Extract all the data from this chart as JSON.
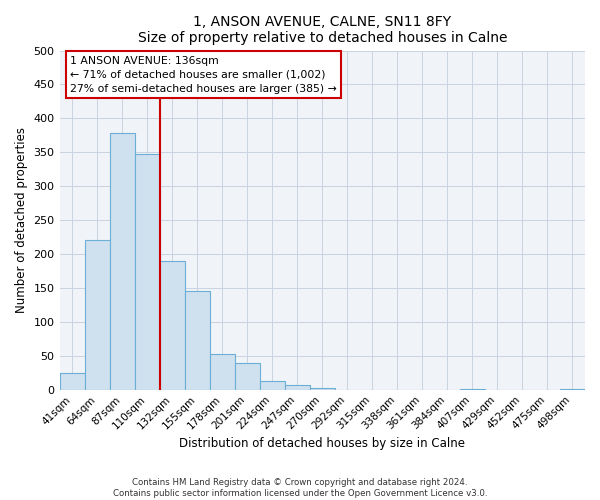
{
  "title": "1, ANSON AVENUE, CALNE, SN11 8FY",
  "subtitle": "Size of property relative to detached houses in Calne",
  "xlabel": "Distribution of detached houses by size in Calne",
  "ylabel": "Number of detached properties",
  "bar_labels": [
    "41sqm",
    "64sqm",
    "87sqm",
    "110sqm",
    "132sqm",
    "155sqm",
    "178sqm",
    "201sqm",
    "224sqm",
    "247sqm",
    "270sqm",
    "292sqm",
    "315sqm",
    "338sqm",
    "361sqm",
    "384sqm",
    "407sqm",
    "429sqm",
    "452sqm",
    "475sqm",
    "498sqm"
  ],
  "bar_values": [
    25,
    220,
    378,
    348,
    190,
    145,
    52,
    40,
    13,
    7,
    2,
    0,
    0,
    0,
    0,
    0,
    1,
    0,
    0,
    0,
    1
  ],
  "bar_color": "#cfe0ef",
  "bar_edge_color": "#6baed6",
  "vline_color": "#cc0000",
  "vline_x_index": 3.5,
  "annotation_title": "1 ANSON AVENUE: 136sqm",
  "annotation_line1": "← 71% of detached houses are smaller (1,002)",
  "annotation_line2": "27% of semi-detached houses are larger (385) →",
  "annotation_box_color": "#ffffff",
  "annotation_box_edge": "#cc0000",
  "ylim": [
    0,
    500
  ],
  "footnote1": "Contains HM Land Registry data © Crown copyright and database right 2024.",
  "footnote2": "Contains public sector information licensed under the Open Government Licence v3.0."
}
